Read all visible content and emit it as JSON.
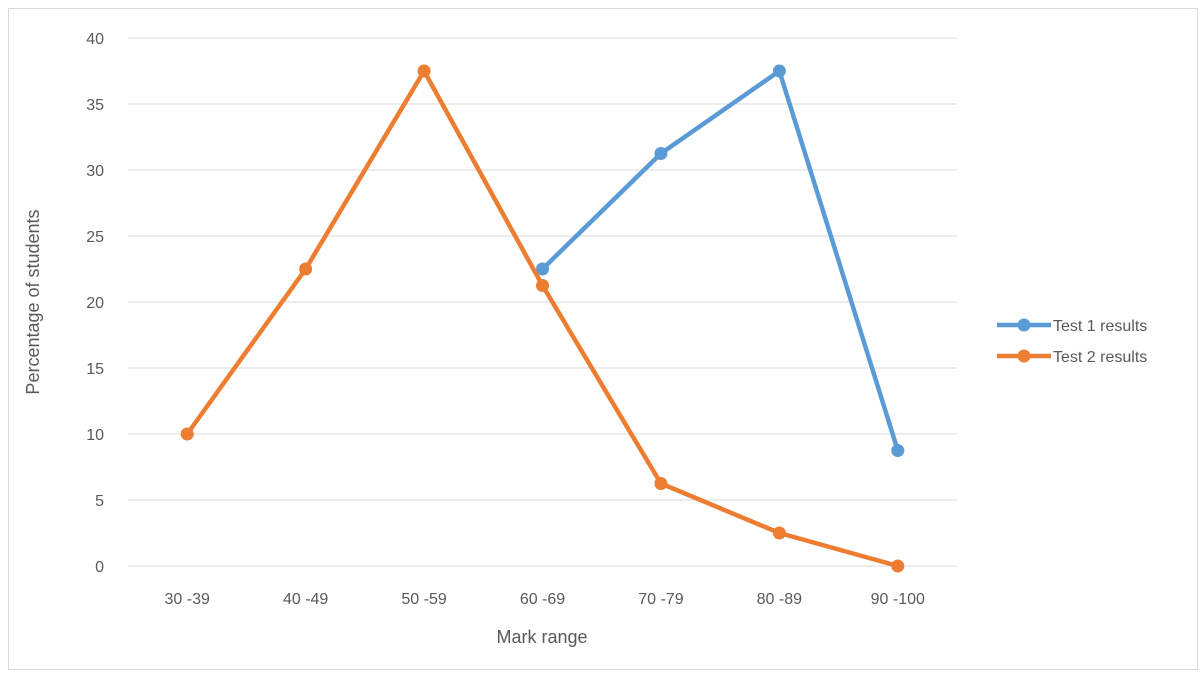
{
  "chart_data": {
    "type": "line",
    "categories": [
      "30 -39",
      "40 -49",
      "50 -59",
      "60 -69",
      "70 -79",
      "80 -89",
      "90 -100"
    ],
    "series": [
      {
        "name": "Test 1 results",
        "color": "#5B9BD5",
        "values": [
          null,
          null,
          null,
          22.5,
          31.25,
          37.5,
          8.75
        ]
      },
      {
        "name": "Test 2 results",
        "color": "#ED7D31",
        "values": [
          10,
          22.5,
          37.5,
          21.25,
          6.25,
          2.5,
          0
        ]
      }
    ],
    "xlabel": "Mark range",
    "ylabel": "Percentage of students",
    "ylim": [
      0,
      40
    ],
    "yticks": [
      0,
      5,
      10,
      15,
      20,
      25,
      30,
      35,
      40
    ],
    "grid": true,
    "legend": "right"
  }
}
